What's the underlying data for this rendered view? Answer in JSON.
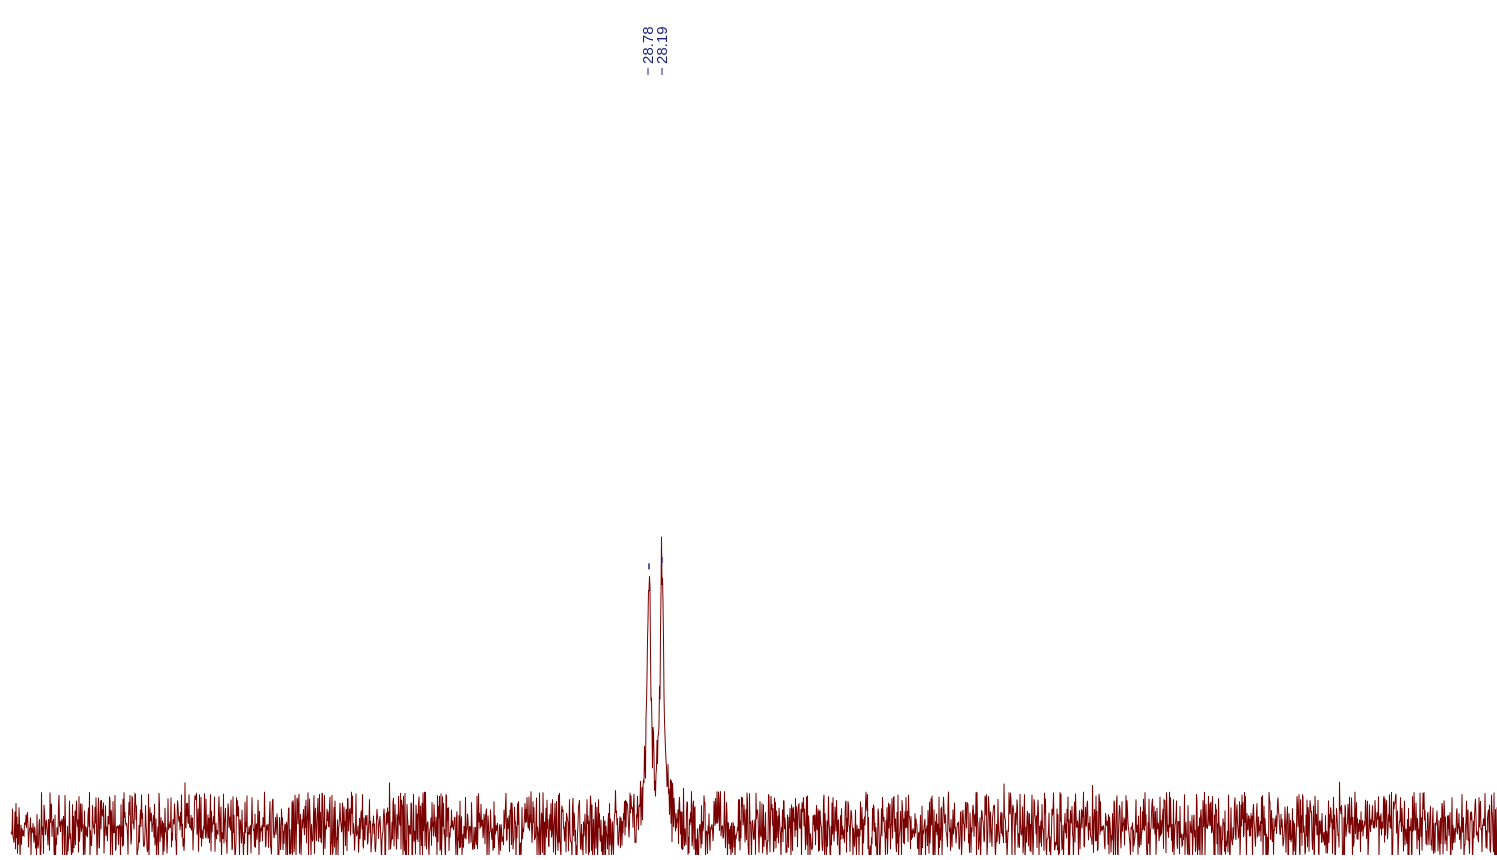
{
  "chart_data": {
    "type": "line",
    "title": "",
    "xlabel": "",
    "ylabel": "",
    "grid": false,
    "legend": "none",
    "colors": {
      "spectrum": "#7a0000",
      "peak_label": "#1a237e"
    },
    "peaks": [
      {
        "label": "28.78",
        "ppm": 28.78,
        "intensity": 0.315
      },
      {
        "label": "28.19",
        "ppm": 28.19,
        "intensity": 0.323
      }
    ],
    "baseline_noise": 0.028
  }
}
